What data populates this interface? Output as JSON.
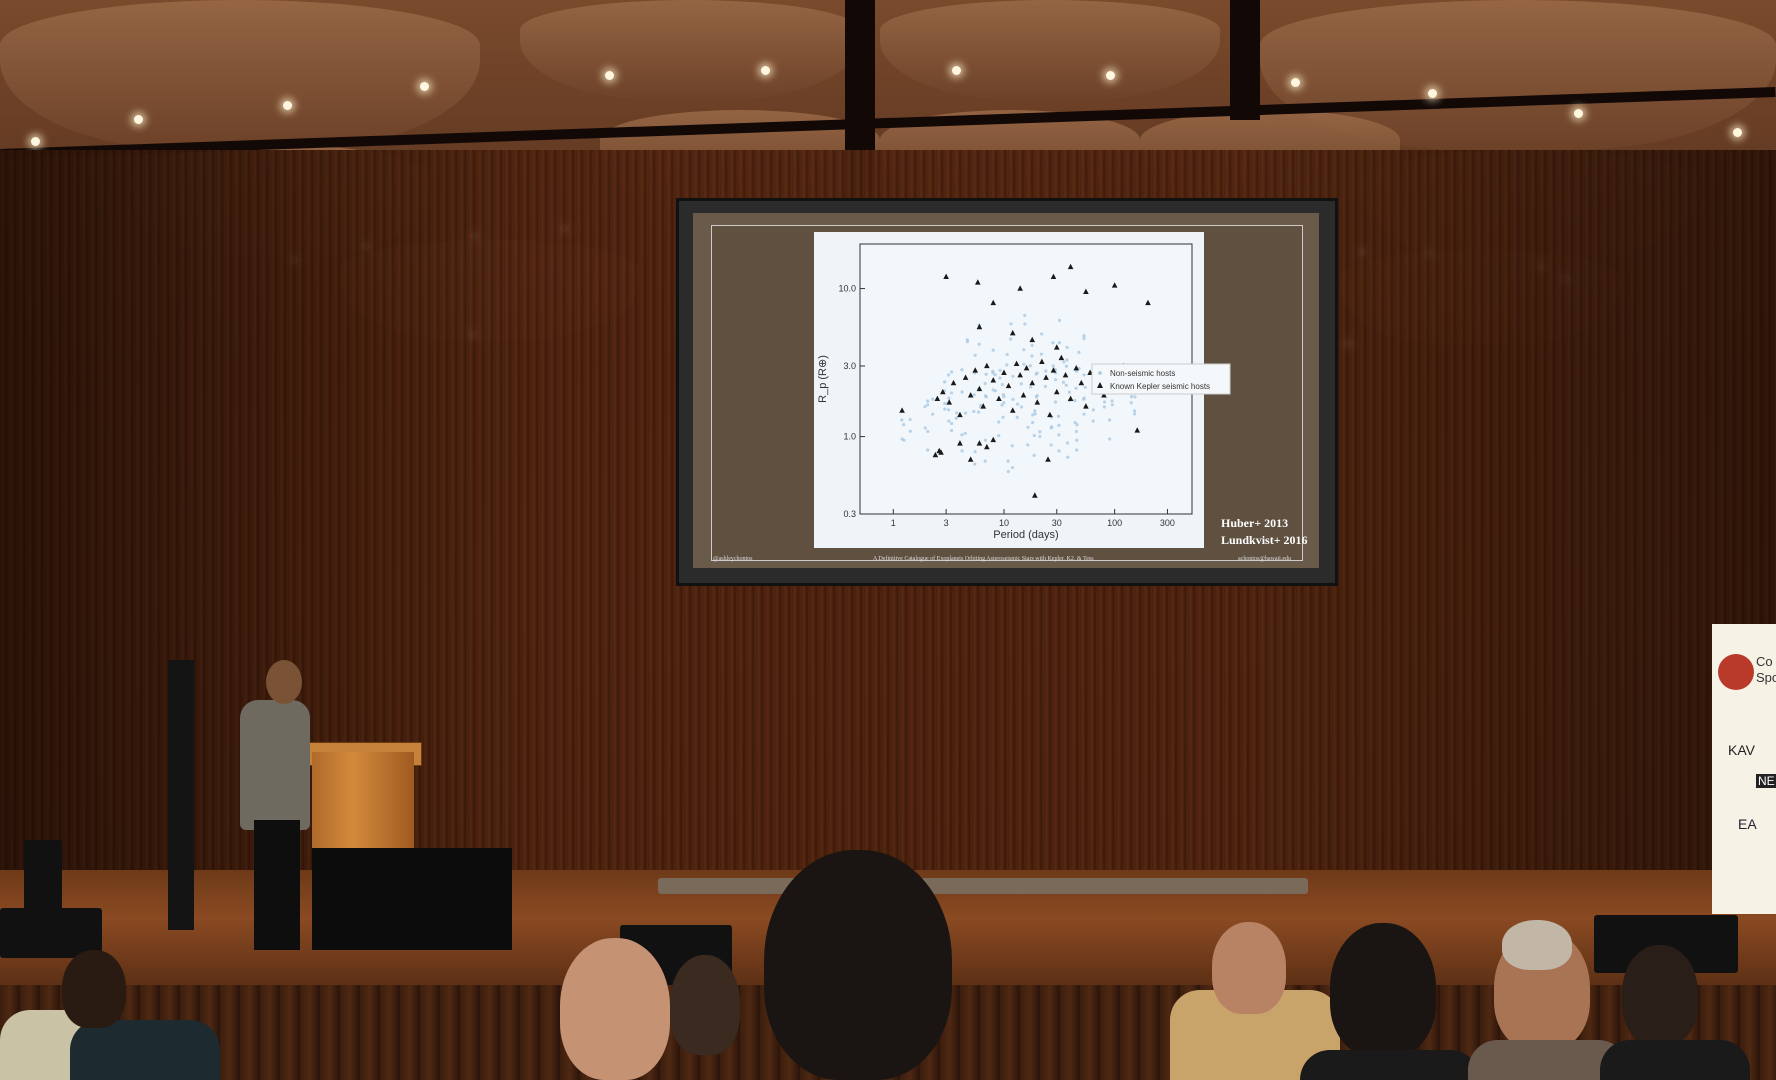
{
  "slide": {
    "ylabel": "R_p (R⊕)",
    "xlabel": "Period (days)",
    "legend": [
      "Non-seismic hosts",
      "Known Kepler seismic hosts"
    ],
    "citation_1": "Huber+ 2013",
    "citation_2": "Lundkvist+ 2016",
    "footer_left": "@ashleychontos",
    "footer_center": "A Definitive Catalogue of Exoplanets Orbiting Asteroseismic Stars with Kepler, K2, & Tess",
    "footer_right": "achontos@hawaii.edu"
  },
  "banner": {
    "text_1": "Co",
    "text_2": "Spo",
    "logo_1": "KAV",
    "logo_2": "NE",
    "logo_3": "EA"
  },
  "chart_data": {
    "type": "scatter",
    "xlabel": "Period (days)",
    "ylabel": "R_p (R⊕)",
    "xscale": "log",
    "yscale": "log",
    "xlim": [
      0.5,
      500
    ],
    "ylim": [
      0.3,
      20
    ],
    "xticks": [
      "1",
      "3",
      "10",
      "30",
      "100",
      "300"
    ],
    "yticks": [
      "0.3",
      "1.0",
      "3.0",
      "10.0"
    ],
    "legend_position": "right",
    "series": [
      {
        "name": "Non-seismic hosts",
        "marker": "dot",
        "color": "#a9c8e2",
        "points": [
          [
            2,
            1.5
          ],
          [
            3,
            2.2
          ],
          [
            4,
            1.8
          ],
          [
            5,
            2.6
          ],
          [
            6,
            1.4
          ],
          [
            8,
            2.1
          ],
          [
            10,
            2.8
          ],
          [
            12,
            1.7
          ],
          [
            15,
            2.3
          ],
          [
            20,
            1.9
          ],
          [
            25,
            3.0
          ],
          [
            30,
            2.4
          ],
          [
            40,
            1.6
          ],
          [
            50,
            2.9
          ],
          [
            60,
            1.3
          ],
          [
            80,
            2.2
          ],
          [
            100,
            1.9
          ],
          [
            3,
            1.1
          ],
          [
            7,
            3.4
          ],
          [
            18,
            1.2
          ],
          [
            35,
            3.6
          ],
          [
            70,
            2.7
          ],
          [
            1.5,
            1.3
          ],
          [
            9,
            4.2
          ],
          [
            22,
            4.8
          ],
          [
            45,
            1.1
          ],
          [
            120,
            2.3
          ],
          [
            5,
            0.9
          ],
          [
            14,
            0.8
          ],
          [
            28,
            1.0
          ]
        ]
      },
      {
        "name": "Known Kepler seismic hosts",
        "marker": "triangle",
        "color": "#1a1a1a",
        "points": [
          [
            1.2,
            1.5
          ],
          [
            2.5,
            1.8
          ],
          [
            2.8,
            2.0
          ],
          [
            3.2,
            1.7
          ],
          [
            3.5,
            2.3
          ],
          [
            4,
            1.4
          ],
          [
            4.5,
            2.5
          ],
          [
            5,
            1.9
          ],
          [
            5.5,
            2.8
          ],
          [
            6,
            2.1
          ],
          [
            6.5,
            1.6
          ],
          [
            7,
            3.0
          ],
          [
            8,
            2.4
          ],
          [
            9,
            1.8
          ],
          [
            10,
            2.7
          ],
          [
            11,
            2.2
          ],
          [
            12,
            1.5
          ],
          [
            13,
            3.1
          ],
          [
            14,
            2.6
          ],
          [
            15,
            1.9
          ],
          [
            16,
            2.9
          ],
          [
            18,
            2.3
          ],
          [
            20,
            1.7
          ],
          [
            22,
            3.2
          ],
          [
            24,
            2.5
          ],
          [
            26,
            1.4
          ],
          [
            28,
            2.8
          ],
          [
            30,
            2.0
          ],
          [
            33,
            3.4
          ],
          [
            36,
            2.6
          ],
          [
            40,
            1.8
          ],
          [
            45,
            2.9
          ],
          [
            50,
            2.3
          ],
          [
            55,
            1.6
          ],
          [
            60,
            2.7
          ],
          [
            70,
            2.4
          ],
          [
            80,
            1.9
          ],
          [
            90,
            2.8
          ],
          [
            2.6,
            0.8
          ],
          [
            2.4,
            0.75
          ],
          [
            2.7,
            0.78
          ],
          [
            6,
            0.9
          ],
          [
            7,
            0.85
          ],
          [
            8,
            0.95
          ],
          [
            4,
            0.9
          ],
          [
            5,
            0.7
          ],
          [
            3,
            12.0
          ],
          [
            5.8,
            11.0
          ],
          [
            8,
            8.0
          ],
          [
            14,
            10.0
          ],
          [
            28,
            12.0
          ],
          [
            40,
            14.0
          ],
          [
            55,
            9.5
          ],
          [
            100,
            10.5
          ],
          [
            200,
            8.0
          ],
          [
            19,
            0.4
          ],
          [
            120,
            3.0
          ],
          [
            160,
            1.1
          ],
          [
            25,
            0.7
          ],
          [
            12,
            5.0
          ],
          [
            18,
            4.5
          ],
          [
            30,
            4.0
          ],
          [
            6,
            5.5
          ]
        ]
      }
    ]
  }
}
